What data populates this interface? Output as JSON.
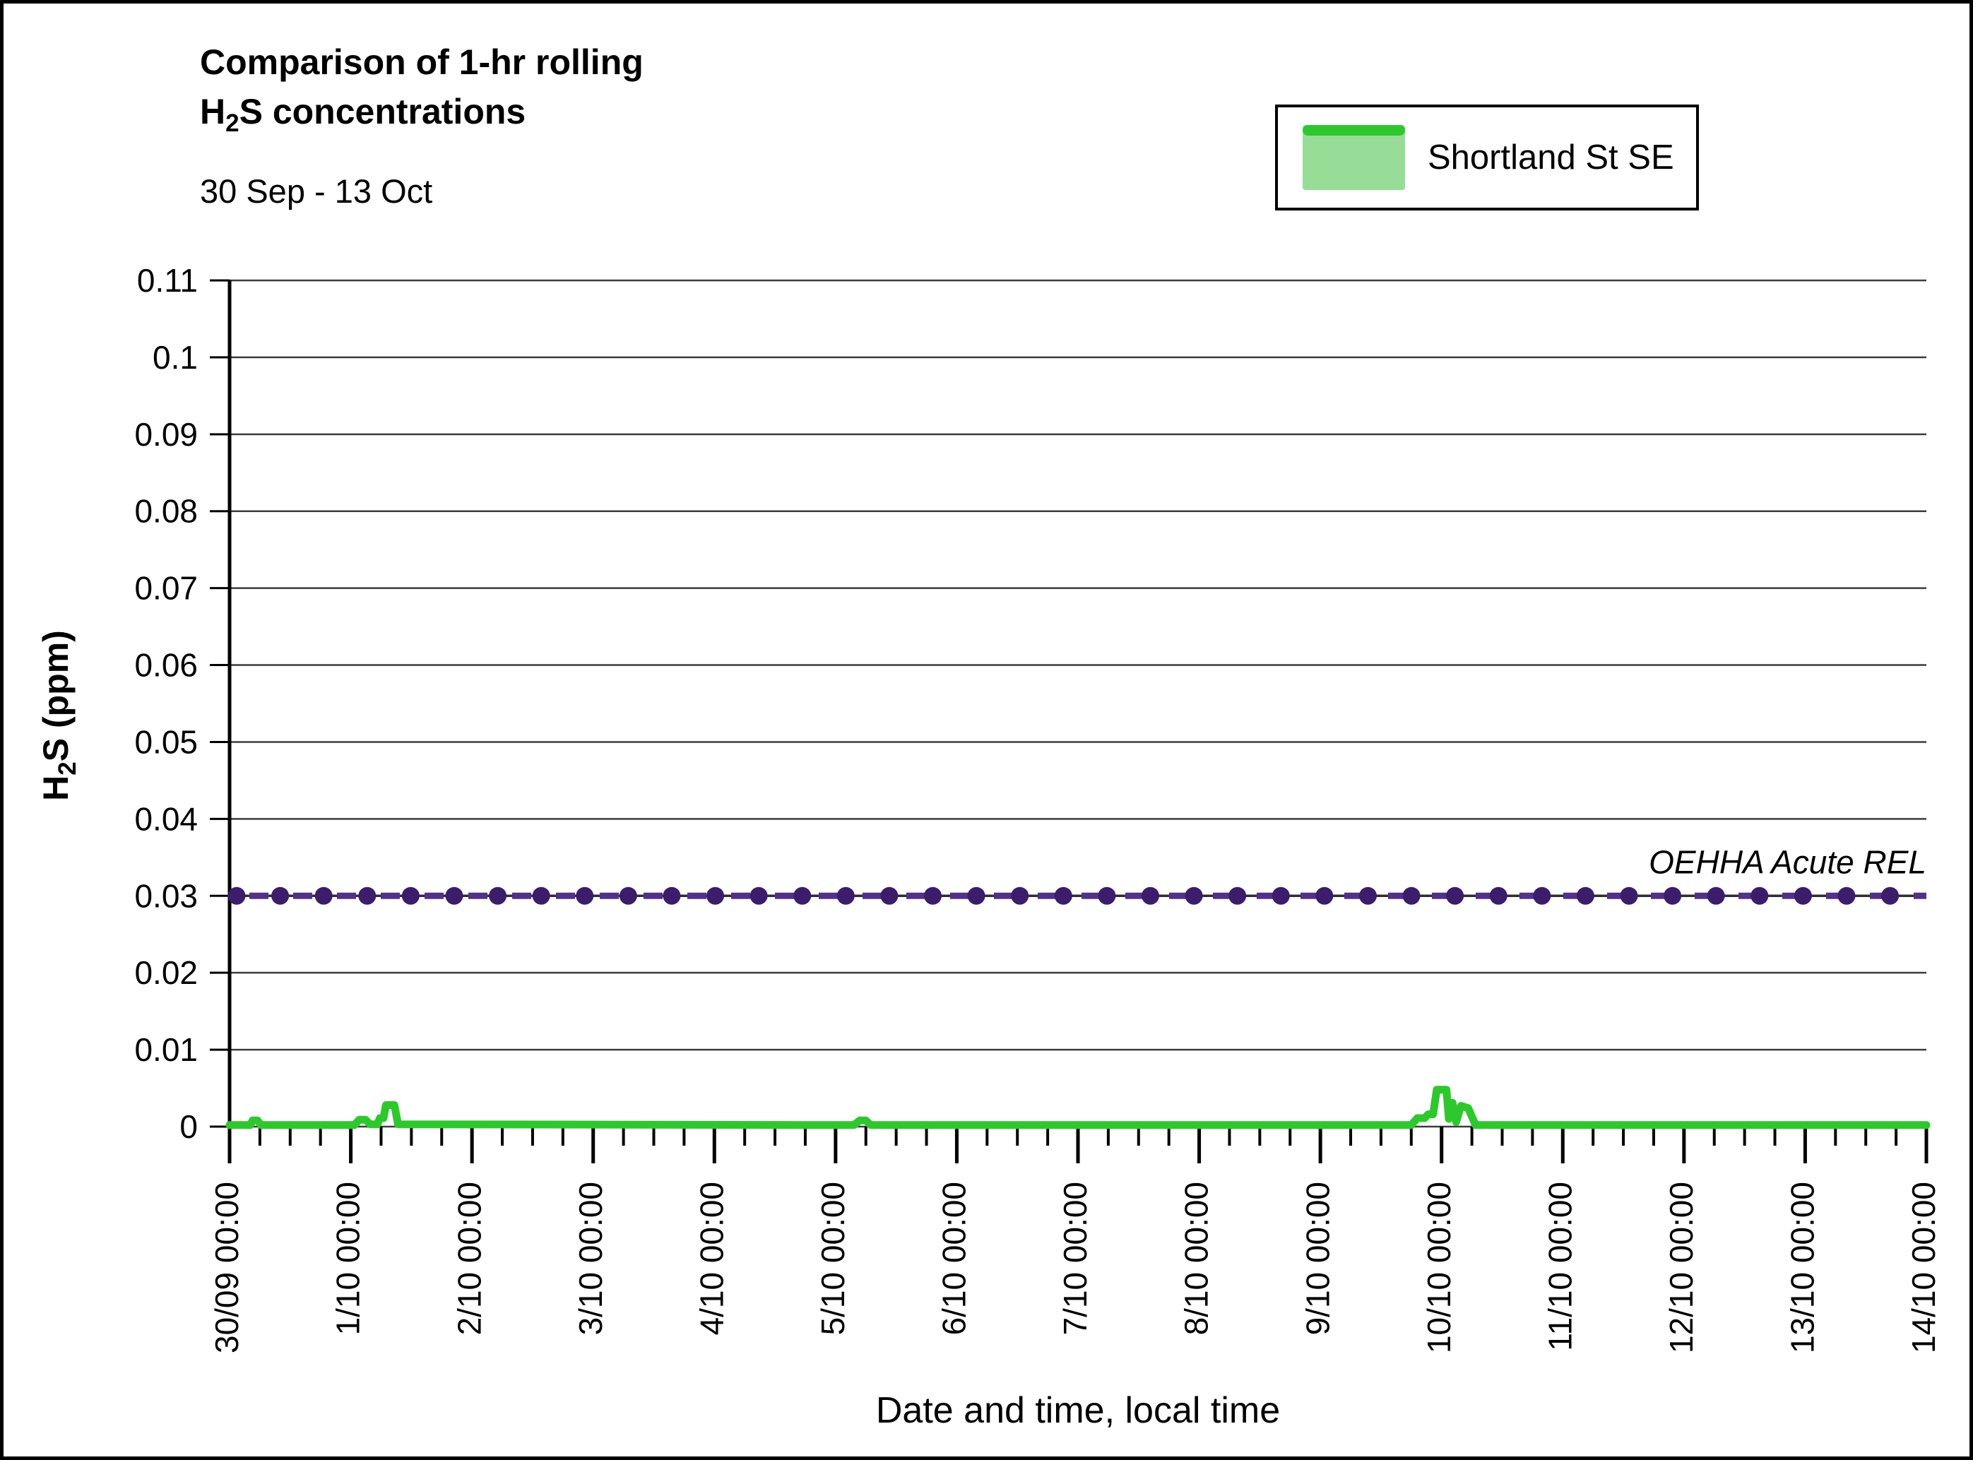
{
  "title": {
    "line1": "Comparison of 1-hr rolling",
    "line2_prefix": "H",
    "line2_sub": "2",
    "line2_suffix": "S concentrations",
    "subtitle": "30 Sep - 13 Oct"
  },
  "legend": {
    "label": "Shortland St SE",
    "swatch_fill": "#97dd97",
    "swatch_line": "#2ec82e"
  },
  "axis_titles": {
    "y_prefix": "H",
    "y_sub": "2",
    "y_suffix": "S (ppm)",
    "x": "Date and time, local time"
  },
  "annotation": "OEHHA Acute REL",
  "colors": {
    "series_green": "#2ec82e",
    "rel_marker_purple": "#3b1d6b",
    "rel_dash_purple": "#53308a",
    "rel_base_line": "#2e2e2e",
    "gridline": "#3c3c3c",
    "axis": "#000000"
  },
  "chart_data": {
    "type": "line",
    "title": "Comparison of 1-hr rolling H2S concentrations, 30 Sep - 13 Oct",
    "xlabel": "Date and time, local time",
    "ylabel": "H2S (ppm)",
    "ylim": [
      0,
      0.11
    ],
    "y_tick_step": 0.01,
    "y_tick_labels": [
      "0",
      "0.01",
      "0.02",
      "0.03",
      "0.04",
      "0.05",
      "0.06",
      "0.07",
      "0.08",
      "0.09",
      "0.1",
      "0.11"
    ],
    "x_tick_labels": [
      "30/09 00:00",
      "1/10 00:00",
      "2/10 00:00",
      "3/10 00:00",
      "4/10 00:00",
      "5/10 00:00",
      "6/10 00:00",
      "7/10 00:00",
      "8/10 00:00",
      "9/10 00:00",
      "10/10 00:00",
      "11/10 00:00",
      "12/10 00:00",
      "13/10 00:00",
      "14/10 00:00"
    ],
    "x_minor_tick_hours": 6,
    "x_range_days": [
      0,
      14
    ],
    "grid": true,
    "legend_position": "top-right",
    "series": [
      {
        "name": "Shortland St SE",
        "style": "line",
        "points_day_ppm": [
          [
            0,
            0.0002
          ],
          [
            0.17,
            0.0002
          ],
          [
            0.19,
            0.0008
          ],
          [
            0.23,
            0.0008
          ],
          [
            0.26,
            0.0002
          ],
          [
            1.03,
            0.0002
          ],
          [
            1.07,
            0.0009
          ],
          [
            1.12,
            0.0009
          ],
          [
            1.16,
            0.0003
          ],
          [
            1.22,
            0.0003
          ],
          [
            1.24,
            0.0011
          ],
          [
            1.27,
            0.0011
          ],
          [
            1.29,
            0.0028
          ],
          [
            1.36,
            0.0028
          ],
          [
            1.39,
            0.0003
          ],
          [
            5.15,
            0.0002
          ],
          [
            5.2,
            0.0008
          ],
          [
            5.25,
            0.0008
          ],
          [
            5.29,
            0.0002
          ],
          [
            9.75,
            0.0002
          ],
          [
            9.8,
            0.0011
          ],
          [
            9.86,
            0.0011
          ],
          [
            9.89,
            0.0016
          ],
          [
            9.93,
            0.0016
          ],
          [
            9.96,
            0.0048
          ],
          [
            10.04,
            0.0048
          ],
          [
            10.06,
            0.001
          ],
          [
            10.09,
            0.0031
          ],
          [
            10.12,
            0.0006
          ],
          [
            10.16,
            0.0027
          ],
          [
            10.22,
            0.0024
          ],
          [
            10.28,
            0.0002
          ],
          [
            14,
            0.0002
          ]
        ]
      },
      {
        "name": "OEHHA Acute REL",
        "style": "reference-dashed-markers",
        "value_ppm": 0.03
      }
    ]
  }
}
